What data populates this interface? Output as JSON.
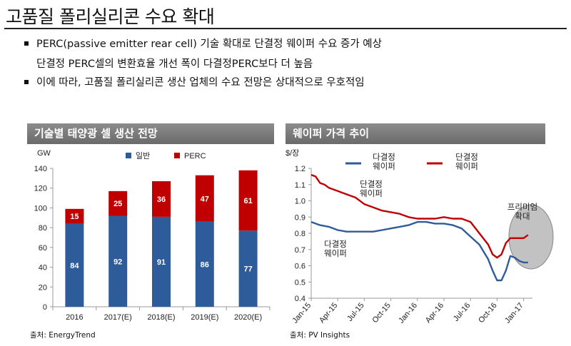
{
  "page": {
    "title": "고품질 폴리실리콘 수요 확대",
    "bullets": [
      "PERC(passive emitter rear cell) 기술 확대로 단결정 웨이퍼 수요 증가 예상",
      "이에 따라, 고품질 폴리실리콘 생산 업체의 수요 전망은 상대적으로 우호적임"
    ],
    "bullet_continuation": "단결정 PERC셀의 변환효율 개선 폭이 다결정PERC보다 더 높음"
  },
  "left_panel": {
    "header": "기술별 태양광 셀 생산 전망",
    "source": "출처: EnergyTrend"
  },
  "right_panel": {
    "header": "웨이퍼 가격 추이",
    "source": "출처: PV Insights"
  },
  "chart_data": [
    {
      "type": "bar",
      "stacked": true,
      "title": "기술별 태양광 셀 생산 전망",
      "ylabel": "GW",
      "ylim": [
        0,
        140
      ],
      "yticks": [
        0,
        20,
        40,
        60,
        80,
        100,
        120,
        140
      ],
      "categories": [
        "2016",
        "2017(E)",
        "2018(E)",
        "2019(E)",
        "2020(E)"
      ],
      "series": [
        {
          "name": "일반",
          "values": [
            84,
            92,
            91,
            86,
            77
          ],
          "color": "#2e5c9a"
        },
        {
          "name": "PERC",
          "values": [
            15,
            25,
            36,
            47,
            61
          ],
          "color": "#c00000"
        }
      ],
      "legend": "top",
      "grid": false
    },
    {
      "type": "line",
      "title": "웨이퍼 가격 추이",
      "ylabel": "$/장",
      "ylim": [
        0.4,
        1.2
      ],
      "yticks": [
        "0.4",
        "0.5",
        "0.6",
        "0.7",
        "0.8",
        "0.9",
        "1.0",
        "1.1",
        "1.2"
      ],
      "xticks": [
        "Jan-15",
        "Apr-15",
        "Jul-15",
        "Oct-15",
        "Jan-16",
        "Apr-16",
        "Jul-16",
        "Oct-16",
        "Jan-17"
      ],
      "x_unit": "month",
      "x_start": "2015-01",
      "series": [
        {
          "name": "단결정 웨이퍼",
          "color": "#c00000",
          "points": [
            [
              0,
              1.16
            ],
            [
              0.5,
              1.15
            ],
            [
              1,
              1.11
            ],
            [
              1.5,
              1.1
            ],
            [
              2,
              1.08
            ],
            [
              3,
              1.06
            ],
            [
              3.5,
              1.05
            ],
            [
              4,
              1.04
            ],
            [
              5,
              1.02
            ],
            [
              6,
              0.98
            ],
            [
              7,
              0.96
            ],
            [
              8,
              0.94
            ],
            [
              9,
              0.93
            ],
            [
              10,
              0.92
            ],
            [
              11,
              0.9
            ],
            [
              12,
              0.89
            ],
            [
              13,
              0.89
            ],
            [
              14,
              0.89
            ],
            [
              15,
              0.9
            ],
            [
              16,
              0.89
            ],
            [
              17,
              0.89
            ],
            [
              18,
              0.87
            ],
            [
              19,
              0.8
            ],
            [
              20,
              0.73
            ],
            [
              20.5,
              0.67
            ],
            [
              21,
              0.65
            ],
            [
              21.5,
              0.67
            ],
            [
              22,
              0.74
            ],
            [
              22.5,
              0.77
            ],
            [
              23,
              0.77
            ],
            [
              24,
              0.77
            ],
            [
              24.5,
              0.79
            ]
          ]
        },
        {
          "name": "다결정 웨이퍼",
          "color": "#2e5c9a",
          "points": [
            [
              0,
              0.87
            ],
            [
              1,
              0.85
            ],
            [
              2,
              0.84
            ],
            [
              3,
              0.82
            ],
            [
              4,
              0.81
            ],
            [
              5,
              0.81
            ],
            [
              6,
              0.81
            ],
            [
              7,
              0.81
            ],
            [
              8,
              0.82
            ],
            [
              9,
              0.83
            ],
            [
              10,
              0.84
            ],
            [
              11,
              0.85
            ],
            [
              12,
              0.87
            ],
            [
              13,
              0.87
            ],
            [
              14,
              0.86
            ],
            [
              15,
              0.86
            ],
            [
              16,
              0.85
            ],
            [
              17,
              0.83
            ],
            [
              18,
              0.78
            ],
            [
              19,
              0.73
            ],
            [
              20,
              0.64
            ],
            [
              20.5,
              0.57
            ],
            [
              21,
              0.51
            ],
            [
              21.5,
              0.51
            ],
            [
              22,
              0.57
            ],
            [
              22.5,
              0.66
            ],
            [
              23,
              0.65
            ],
            [
              23.5,
              0.63
            ],
            [
              24,
              0.62
            ],
            [
              24.5,
              0.62
            ]
          ]
        }
      ],
      "legend": "top",
      "annotations": [
        "단결정\n웨이퍼",
        "다결정\n웨이퍼",
        "프리미엄\n확대"
      ],
      "grid": false
    }
  ]
}
